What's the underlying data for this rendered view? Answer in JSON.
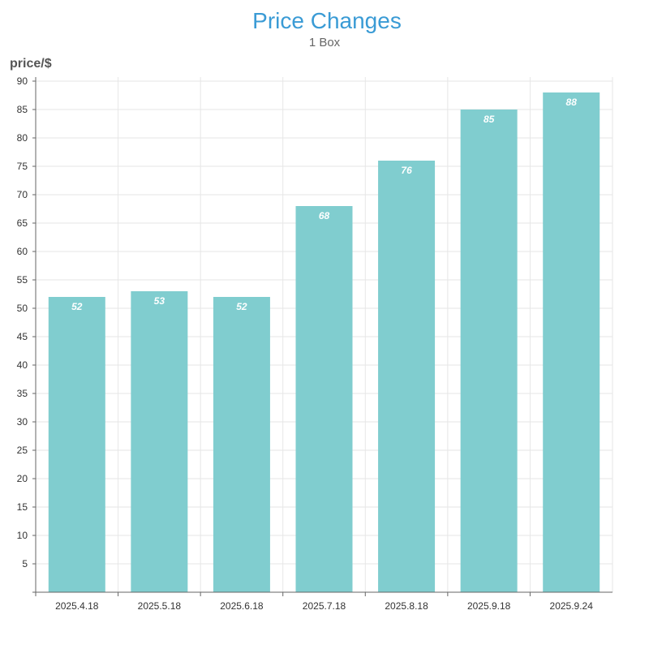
{
  "chart_data": {
    "type": "bar",
    "title": "Price Changes",
    "subtitle": "1 Box",
    "ylabel": "price/$",
    "xlabel": "",
    "categories": [
      "2025.4.18",
      "2025.5.18",
      "2025.6.18",
      "2025.7.18",
      "2025.8.18",
      "2025.9.18",
      "2025.9.24"
    ],
    "values": [
      52,
      53,
      52,
      68,
      76,
      85,
      88
    ],
    "ylim": [
      0,
      90
    ],
    "yticks": [
      5,
      10,
      15,
      20,
      25,
      30,
      35,
      40,
      45,
      50,
      55,
      60,
      65,
      70,
      75,
      80,
      85,
      90
    ],
    "grid": true,
    "legend": "none",
    "bar_color": "#80cdcf",
    "title_color": "#3a9bd5"
  }
}
